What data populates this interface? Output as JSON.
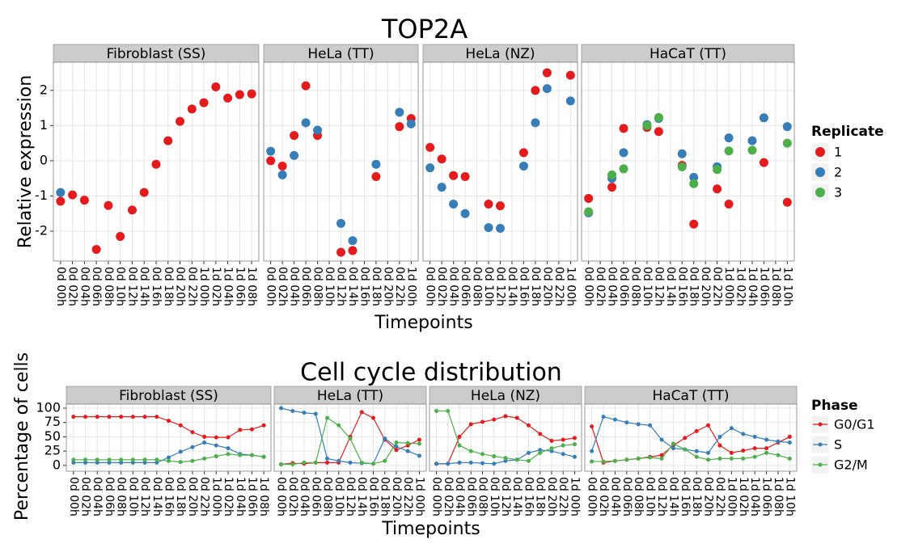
{
  "chart_data": [
    {
      "type": "scatter",
      "title": "TOP2A",
      "x_label": "Timepoints",
      "y_label": "Relative expression",
      "legend_title": "Replicate",
      "ylim": [
        -2.85,
        2.8
      ],
      "yticks": [
        -2,
        -1,
        0,
        1,
        2
      ],
      "grid": true,
      "series": [
        {
          "name": "1",
          "color": "#e41a1c"
        },
        {
          "name": "2",
          "color": "#377eb8"
        },
        {
          "name": "3",
          "color": "#4daf4a"
        }
      ],
      "panels": [
        {
          "name": "Fibroblast (SS)",
          "categories": [
            "0d 00h",
            "0d 02h",
            "0d 04h",
            "0d 06h",
            "0d 08h",
            "0d 10h",
            "0d 12h",
            "0d 14h",
            "0d 16h",
            "0d 18h",
            "0d 20h",
            "0d 22h",
            "1d 00h",
            "1d 02h",
            "1d 04h",
            "1d 06h",
            "1d 08h"
          ],
          "values": [
            [
              -1.15,
              -0.97,
              -1.12,
              -2.52,
              -1.27,
              -2.15,
              -1.4,
              -0.9,
              -0.1,
              0.57,
              1.12,
              1.47,
              1.65,
              2.1,
              1.78,
              1.88,
              1.9
            ],
            [
              -0.9,
              null,
              null,
              null,
              null,
              null,
              null,
              null,
              null,
              null,
              null,
              null,
              null,
              null,
              null,
              null,
              null
            ],
            [
              null,
              null,
              null,
              null,
              null,
              null,
              null,
              null,
              null,
              null,
              null,
              null,
              null,
              null,
              null,
              null,
              null
            ]
          ]
        },
        {
          "name": "HeLa (TT)",
          "categories": [
            "0d 00h",
            "0d 02h",
            "0d 04h",
            "0d 06h",
            "0d 08h",
            "0d 10h",
            "0d 12h",
            "0d 14h",
            "0d 16h",
            "0d 18h",
            "0d 20h",
            "0d 22h",
            "1d 00h"
          ],
          "values": [
            [
              0,
              -0.15,
              0.72,
              2.13,
              0.72,
              null,
              -2.6,
              -2.55,
              null,
              -0.45,
              null,
              0.97,
              1.2
            ],
            [
              0.27,
              -0.4,
              0.15,
              1.08,
              0.87,
              null,
              -1.78,
              -2.27,
              null,
              -0.1,
              null,
              1.38,
              1.05
            ],
            [
              null,
              null,
              null,
              null,
              null,
              null,
              null,
              null,
              null,
              null,
              null,
              null,
              null
            ]
          ]
        },
        {
          "name": "HeLa (NZ)",
          "categories": [
            "0d 00h",
            "0d 02h",
            "0d 04h",
            "0d 06h",
            "0d 08h",
            "0d 10h",
            "0d 12h",
            "0d 14h",
            "0d 16h",
            "0d 18h",
            "0d 20h",
            "0d 22h",
            "1d 00h"
          ],
          "values": [
            [
              0.38,
              0.05,
              -0.42,
              -0.45,
              null,
              -1.23,
              -1.28,
              null,
              0.23,
              2.0,
              2.5,
              null,
              2.43
            ],
            [
              -0.2,
              -0.75,
              -1.23,
              -1.5,
              null,
              -1.9,
              -1.92,
              null,
              -0.15,
              1.08,
              2.05,
              null,
              1.7
            ],
            [
              null,
              null,
              null,
              null,
              null,
              null,
              null,
              null,
              null,
              null,
              null,
              null,
              null
            ]
          ]
        },
        {
          "name": "HaCaT (TT)",
          "categories": [
            "0d 00h",
            "0d 02h",
            "0d 04h",
            "0d 06h",
            "0d 08h",
            "0d 10h",
            "0d 12h",
            "0d 14h",
            "0d 16h",
            "0d 18h",
            "0d 20h",
            "0d 22h",
            "1d 00h",
            "1d 02h",
            "1d 04h",
            "1d 06h",
            "1d 08h",
            "1d 10h"
          ],
          "values": [
            [
              -1.07,
              null,
              -0.75,
              0.92,
              null,
              0.95,
              0.83,
              null,
              -0.13,
              -1.8,
              null,
              -0.8,
              -1.23,
              null,
              null,
              -0.05,
              null,
              -1.18
            ],
            [
              -1.48,
              null,
              -0.5,
              0.23,
              null,
              1.03,
              1.2,
              null,
              0.2,
              -0.47,
              null,
              -0.17,
              0.65,
              null,
              0.57,
              1.22,
              null,
              0.97
            ],
            [
              -1.45,
              null,
              -0.4,
              -0.23,
              null,
              1.0,
              1.23,
              null,
              -0.17,
              -0.65,
              null,
              -0.25,
              0.28,
              null,
              0.3,
              null,
              null,
              0.5
            ]
          ]
        }
      ]
    },
    {
      "type": "line",
      "title": "Cell cycle distribution",
      "x_label": "Timepoints",
      "y_label": "Percentage of cells",
      "legend_title": "Phase",
      "ylim": [
        -10,
        107
      ],
      "yticks": [
        0,
        25,
        50,
        75,
        100
      ],
      "grid": true,
      "series": [
        {
          "name": "G0/G1",
          "color": "#e41a1c"
        },
        {
          "name": "S",
          "color": "#377eb8"
        },
        {
          "name": "G2/M",
          "color": "#4daf4a"
        }
      ],
      "panels": [
        {
          "name": "Fibroblast (SS)",
          "categories": [
            "0d 00h",
            "0d 02h",
            "0d 04h",
            "0d 06h",
            "0d 08h",
            "0d 10h",
            "0d 12h",
            "0d 14h",
            "0d 16h",
            "0d 18h",
            "0d 20h",
            "0d 22h",
            "1d 00h",
            "1d 02h",
            "1d 04h",
            "1d 06h",
            "1d 08h"
          ],
          "values": [
            [
              85,
              85,
              85,
              85,
              85,
              85,
              85,
              85,
              78,
              70,
              58,
              50,
              49,
              49,
              62,
              63,
              70
            ],
            [
              5,
              5,
              5,
              5,
              5,
              5,
              5,
              5,
              14,
              24,
              32,
              40,
              35,
              30,
              20,
              18,
              15
            ],
            [
              10,
              10,
              10,
              10,
              10,
              10,
              10,
              10,
              8,
              6,
              8,
              12,
              16,
              20,
              18,
              18,
              15
            ]
          ]
        },
        {
          "name": "HeLa (TT)",
          "categories": [
            "0d 00h",
            "0d 02h",
            "0d 04h",
            "0d 06h",
            "0d 08h",
            "0d 10h",
            "0d 12h",
            "0d 14h",
            "0d 16h",
            "0d 18h",
            "0d 20h",
            "0d 22h",
            "1d 00h"
          ],
          "values": [
            [
              2,
              4,
              3,
              5,
              5,
              5,
              50,
              93,
              83,
              45,
              27,
              35,
              45
            ],
            [
              100,
              95,
              92,
              90,
              12,
              8,
              5,
              4,
              3,
              47,
              33,
              25,
              17
            ],
            [
              2,
              2,
              5,
              5,
              83,
              70,
              47,
              5,
              3,
              8,
              40,
              39,
              38
            ]
          ]
        },
        {
          "name": "HeLa (NZ)",
          "categories": [
            "0d 00h",
            "0d 02h",
            "0d 04h",
            "0d 06h",
            "0d 08h",
            "0d 10h",
            "0d 12h",
            "0d 14h",
            "0d 16h",
            "0d 18h",
            "0d 20h",
            "0d 22h",
            "1d 00h"
          ],
          "values": [
            [
              3,
              3,
              50,
              72,
              76,
              80,
              86,
              83,
              70,
              55,
              43,
              45,
              48
            ],
            [
              3,
              3,
              5,
              5,
              4,
              3,
              8,
              10,
              22,
              27,
              25,
              20,
              15
            ],
            [
              95,
              95,
              35,
              25,
              20,
              16,
              13,
              10,
              8,
              22,
              30,
              35,
              37
            ]
          ]
        },
        {
          "name": "HaCaT (TT)",
          "categories": [
            "0d 00h",
            "0d 02h",
            "0d 04h",
            "0d 06h",
            "0d 08h",
            "0d 10h",
            "0d 12h",
            "0d 14h",
            "0d 16h",
            "0d 18h",
            "0d 20h",
            "0d 22h",
            "1d 00h",
            "1d 02h",
            "1d 04h",
            "1d 06h",
            "1d 08h",
            "1d 10h"
          ],
          "values": [
            [
              68,
              5,
              8,
              10,
              12,
              15,
              18,
              35,
              48,
              60,
              70,
              35,
              22,
              26,
              30,
              30,
              40,
              50
            ],
            [
              25,
              85,
              80,
              75,
              72,
              70,
              45,
              30,
              28,
              25,
              22,
              50,
              65,
              55,
              50,
              45,
              42,
              40
            ],
            [
              7,
              7,
              8,
              10,
              12,
              14,
              12,
              38,
              28,
              15,
              10,
              12,
              12,
              12,
              15,
              22,
              18,
              12
            ]
          ]
        }
      ]
    }
  ]
}
